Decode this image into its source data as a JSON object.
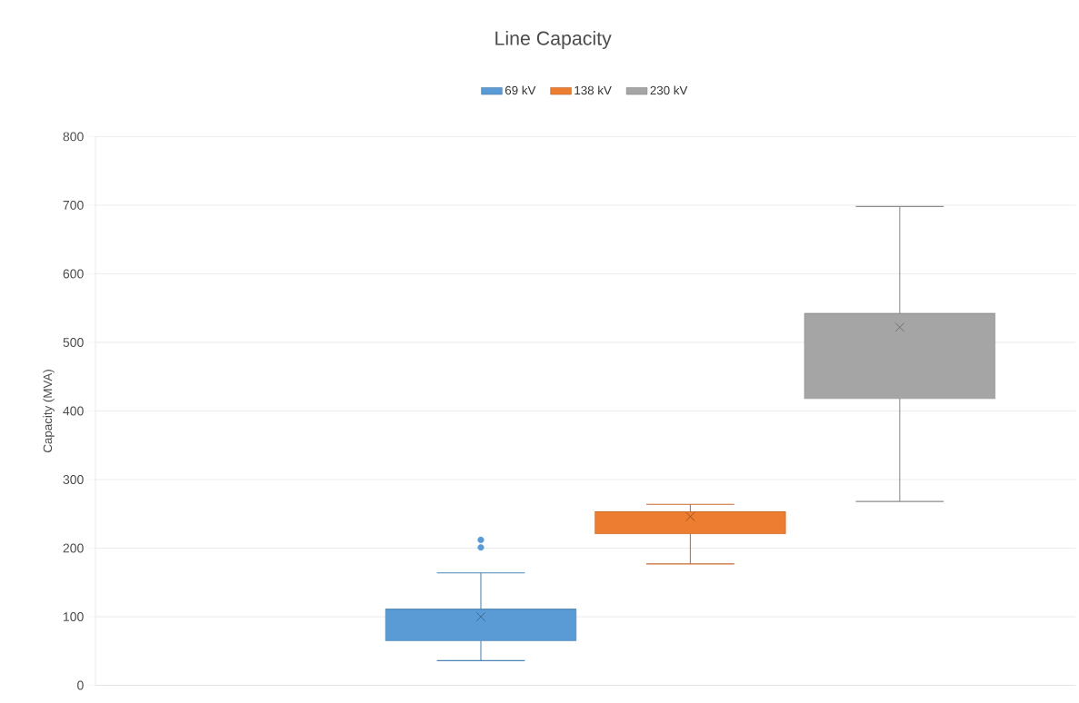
{
  "chart_data": {
    "type": "box",
    "title": "Line Capacity",
    "ylabel": "Capacity (MVA)",
    "categories": [
      null
    ],
    "series": [
      {
        "name": "69 kV",
        "color": "#5b9bd5",
        "boxes": [
          {
            "low": 36,
            "q1": 65,
            "median": 111,
            "q3": 111,
            "high": 164,
            "mean": 100,
            "outliers": [
              201,
              212
            ]
          }
        ]
      },
      {
        "name": "138 kV",
        "color": "#ed7d31",
        "boxes": [
          {
            "low": 177,
            "q1": 221,
            "median": 253,
            "q3": 253,
            "high": 264,
            "mean": 246
          }
        ]
      },
      {
        "name": "230 kV",
        "color": "#a5a5a5",
        "boxes": [
          {
            "low": 268,
            "q1": 418,
            "median": 542,
            "q3": 542,
            "high": 698,
            "mean": 522
          }
        ]
      }
    ],
    "ylim": [
      0,
      800
    ],
    "yticks": [
      0,
      100,
      200,
      300,
      400,
      500,
      600,
      700,
      800
    ],
    "grid": "y",
    "legend": "top",
    "marker": "cross"
  }
}
